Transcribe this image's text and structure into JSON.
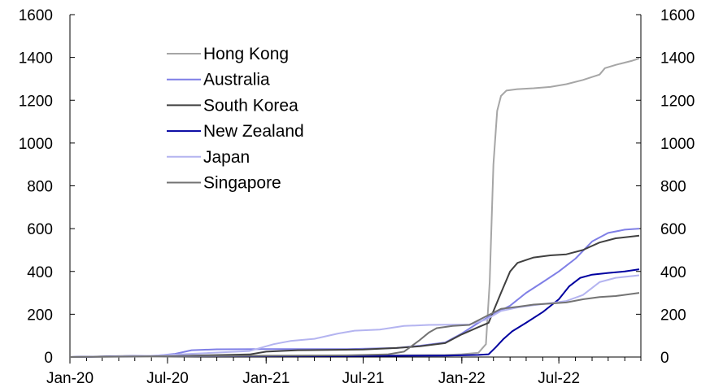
{
  "chart_data": {
    "type": "line",
    "title": "",
    "xlabel": "",
    "ylabel": "",
    "ylim": [
      0,
      1600
    ],
    "y_ticks": [
      "0",
      "200",
      "400",
      "600",
      "800",
      "1000",
      "1200",
      "1400",
      "1600"
    ],
    "y2_ticks": [
      "0",
      "200",
      "400",
      "600",
      "800",
      "1000",
      "1200",
      "1400",
      "1600"
    ],
    "x_ticks": [
      "Jan-20",
      "Jul-20",
      "Jan-21",
      "Jul-21",
      "Jan-22",
      "Jul-22"
    ],
    "x_range": [
      "2020-01",
      "2022-12"
    ],
    "grid": false,
    "legend_position": "top-left",
    "series": [
      {
        "name": "Hong Kong",
        "color": "#a6a6a6",
        "points": [
          [
            "2020-01-01",
            0
          ],
          [
            "2020-06-01",
            2
          ],
          [
            "2020-12-01",
            5
          ],
          [
            "2021-06-01",
            7
          ],
          [
            "2021-12-01",
            10
          ],
          [
            "2022-01-01",
            13
          ],
          [
            "2022-02-01",
            20
          ],
          [
            "2022-02-15",
            60
          ],
          [
            "2022-02-22",
            350
          ],
          [
            "2022-03-01",
            900
          ],
          [
            "2022-03-08",
            1150
          ],
          [
            "2022-03-15",
            1220
          ],
          [
            "2022-03-25",
            1245
          ],
          [
            "2022-04-15",
            1252
          ],
          [
            "2022-05-15",
            1256
          ],
          [
            "2022-06-15",
            1262
          ],
          [
            "2022-07-15",
            1275
          ],
          [
            "2022-08-15",
            1295
          ],
          [
            "2022-09-15",
            1320
          ],
          [
            "2022-09-25",
            1350
          ],
          [
            "2022-10-15",
            1365
          ],
          [
            "2022-11-15",
            1385
          ],
          [
            "2022-11-28",
            1395
          ]
        ]
      },
      {
        "name": "Australia",
        "color": "#7f7fe6",
        "points": [
          [
            "2020-01-01",
            0
          ],
          [
            "2020-06-01",
            4
          ],
          [
            "2020-07-15",
            15
          ],
          [
            "2020-08-15",
            32
          ],
          [
            "2020-10-01",
            36
          ],
          [
            "2020-12-31",
            37
          ],
          [
            "2021-06-01",
            37
          ],
          [
            "2021-09-01",
            42
          ],
          [
            "2021-10-15",
            53
          ],
          [
            "2021-12-01",
            68
          ],
          [
            "2022-01-01",
            110
          ],
          [
            "2022-02-01",
            160
          ],
          [
            "2022-03-01",
            200
          ],
          [
            "2022-04-01",
            240
          ],
          [
            "2022-05-01",
            300
          ],
          [
            "2022-06-01",
            350
          ],
          [
            "2022-07-01",
            400
          ],
          [
            "2022-08-01",
            460
          ],
          [
            "2022-09-01",
            540
          ],
          [
            "2022-10-01",
            580
          ],
          [
            "2022-11-01",
            595
          ],
          [
            "2022-11-28",
            600
          ]
        ]
      },
      {
        "name": "South Korea",
        "color": "#404040",
        "points": [
          [
            "2020-01-01",
            0
          ],
          [
            "2020-04-01",
            4
          ],
          [
            "2020-08-01",
            6
          ],
          [
            "2020-12-01",
            12
          ],
          [
            "2021-01-01",
            25
          ],
          [
            "2021-03-01",
            32
          ],
          [
            "2021-07-01",
            35
          ],
          [
            "2021-09-01",
            42
          ],
          [
            "2021-10-15",
            50
          ],
          [
            "2021-12-01",
            65
          ],
          [
            "2021-12-31",
            105
          ],
          [
            "2022-02-01",
            140
          ],
          [
            "2022-02-20",
            160
          ],
          [
            "2022-03-15",
            300
          ],
          [
            "2022-04-01",
            400
          ],
          [
            "2022-04-15",
            440
          ],
          [
            "2022-05-15",
            465
          ],
          [
            "2022-06-15",
            475
          ],
          [
            "2022-07-15",
            480
          ],
          [
            "2022-08-15",
            500
          ],
          [
            "2022-09-15",
            535
          ],
          [
            "2022-10-15",
            555
          ],
          [
            "2022-11-28",
            567
          ]
        ]
      },
      {
        "name": "New Zealand",
        "color": "#0000a0",
        "points": [
          [
            "2020-01-01",
            0
          ],
          [
            "2020-05-01",
            5
          ],
          [
            "2021-06-01",
            5
          ],
          [
            "2021-12-01",
            7
          ],
          [
            "2022-02-01",
            10
          ],
          [
            "2022-02-20",
            13
          ],
          [
            "2022-03-05",
            45
          ],
          [
            "2022-03-20",
            85
          ],
          [
            "2022-04-05",
            120
          ],
          [
            "2022-05-01",
            160
          ],
          [
            "2022-06-01",
            210
          ],
          [
            "2022-07-01",
            270
          ],
          [
            "2022-07-20",
            330
          ],
          [
            "2022-08-10",
            370
          ],
          [
            "2022-09-01",
            385
          ],
          [
            "2022-10-01",
            393
          ],
          [
            "2022-11-01",
            400
          ],
          [
            "2022-11-28",
            410
          ]
        ]
      },
      {
        "name": "Japan",
        "color": "#b4b4f0",
        "points": [
          [
            "2020-01-01",
            0
          ],
          [
            "2020-06-01",
            6
          ],
          [
            "2020-12-01",
            28
          ],
          [
            "2021-01-15",
            60
          ],
          [
            "2021-02-15",
            75
          ],
          [
            "2021-04-01",
            85
          ],
          [
            "2021-05-15",
            110
          ],
          [
            "2021-06-15",
            123
          ],
          [
            "2021-08-01",
            128
          ],
          [
            "2021-09-15",
            145
          ],
          [
            "2021-11-01",
            150
          ],
          [
            "2022-01-15",
            152
          ],
          [
            "2022-02-15",
            175
          ],
          [
            "2022-03-15",
            215
          ],
          [
            "2022-04-15",
            232
          ],
          [
            "2022-05-15",
            242
          ],
          [
            "2022-06-15",
            252
          ],
          [
            "2022-07-15",
            262
          ],
          [
            "2022-08-15",
            290
          ],
          [
            "2022-09-15",
            350
          ],
          [
            "2022-10-15",
            370
          ],
          [
            "2022-11-28",
            382
          ]
        ]
      },
      {
        "name": "Singapore",
        "color": "#737373",
        "points": [
          [
            "2020-01-01",
            0
          ],
          [
            "2020-08-01",
            5
          ],
          [
            "2021-06-01",
            8
          ],
          [
            "2021-08-15",
            12
          ],
          [
            "2021-09-15",
            25
          ],
          [
            "2021-10-15",
            80
          ],
          [
            "2021-11-01",
            115
          ],
          [
            "2021-11-15",
            135
          ],
          [
            "2021-12-15",
            145
          ],
          [
            "2022-01-15",
            150
          ],
          [
            "2022-02-15",
            190
          ],
          [
            "2022-03-15",
            225
          ],
          [
            "2022-04-15",
            235
          ],
          [
            "2022-05-15",
            245
          ],
          [
            "2022-06-15",
            250
          ],
          [
            "2022-07-15",
            255
          ],
          [
            "2022-08-15",
            270
          ],
          [
            "2022-09-15",
            280
          ],
          [
            "2022-10-15",
            285
          ],
          [
            "2022-11-28",
            300
          ]
        ]
      }
    ]
  }
}
